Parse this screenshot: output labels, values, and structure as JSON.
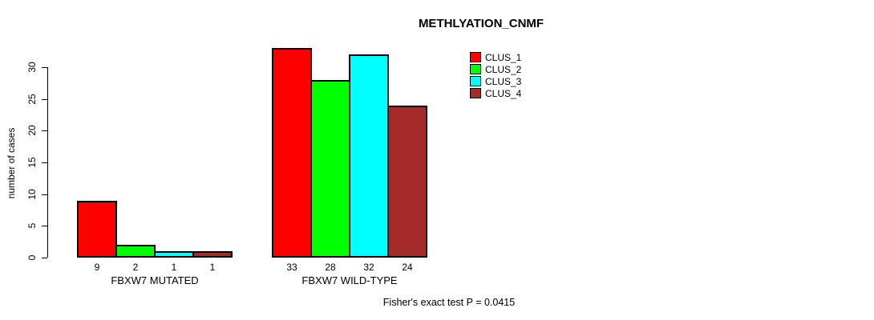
{
  "title": "METHLYATION_CNMF",
  "footer": "Fisher's exact test P = 0.0415",
  "chart_data": {
    "type": "bar",
    "title": "METHLYATION_CNMF",
    "xlabel": "",
    "ylabel": "number of cases",
    "ylim": [
      0,
      33
    ],
    "yticks": [
      0,
      5,
      10,
      15,
      20,
      25,
      30
    ],
    "grid": false,
    "legend_position": "top-right",
    "categories": [
      "FBXW7 MUTATED",
      "FBXW7 WILD-TYPE"
    ],
    "series": [
      {
        "name": "CLUS_1",
        "color": "#FF0000",
        "values": [
          9,
          33
        ]
      },
      {
        "name": "CLUS_2",
        "color": "#00FF00",
        "values": [
          2,
          28
        ]
      },
      {
        "name": "CLUS_3",
        "color": "#00FFFF",
        "values": [
          1,
          32
        ]
      },
      {
        "name": "CLUS_4",
        "color": "#A52A2A",
        "values": [
          1,
          24
        ]
      }
    ],
    "bar_value_labels": [
      [
        9,
        2,
        1,
        1
      ],
      [
        33,
        28,
        32,
        24
      ]
    ],
    "annotation": "Fisher's exact test P = 0.0415"
  }
}
